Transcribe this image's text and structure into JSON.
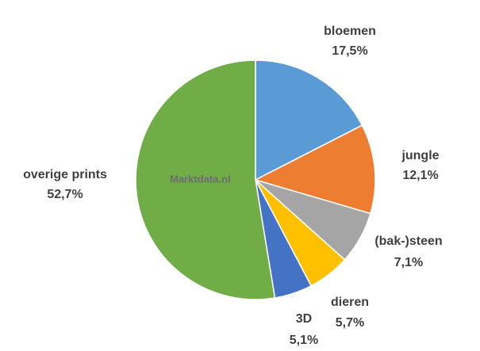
{
  "chart_data": {
    "type": "pie",
    "categories": [
      "bloemen",
      "jungle",
      "(bak-)steen",
      "dieren",
      "3D",
      "overige prints"
    ],
    "values": [
      17.5,
      12.1,
      7.1,
      5.7,
      5.1,
      52.7
    ],
    "value_labels": [
      "17,5%",
      "12,1%",
      "7,1%",
      "5,7%",
      "5,1%",
      "52,7%"
    ],
    "colors": [
      "#5b9bd5",
      "#ed7d31",
      "#a5a5a5",
      "#ffc000",
      "#4472c4",
      "#70ad47"
    ],
    "watermark": "Marktdata.nl"
  }
}
